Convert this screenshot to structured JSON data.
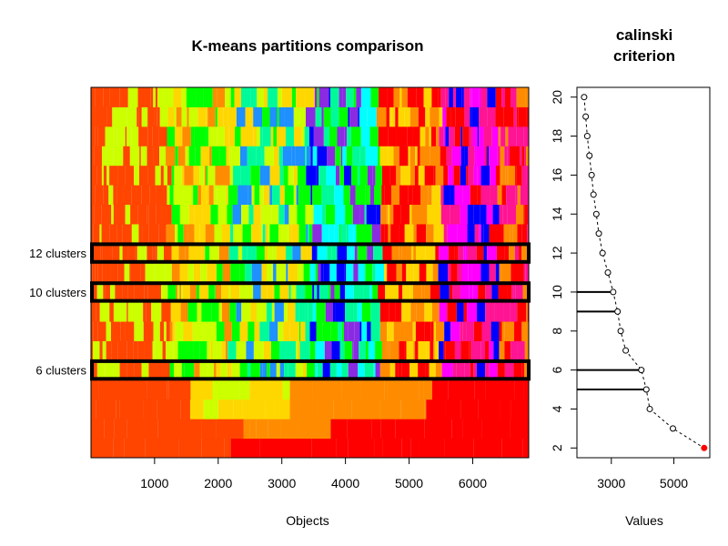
{
  "chart_data": [
    {
      "type": "heatmap",
      "title": "K-means partitions comparison",
      "xlabel": "Objects",
      "ylabel": "",
      "xlim": [
        1,
        6880
      ],
      "x_ticks": [
        "1000",
        "2000",
        "3000",
        "4000",
        "5000",
        "6000"
      ],
      "x_tick_values": [
        1000,
        2000,
        3000,
        4000,
        5000,
        6000
      ],
      "rows": "one row per number of clusters k, from k = 2 (bottom) to k = 20 (top); each row colored by cluster membership of the objects",
      "k_range": [
        2,
        20
      ],
      "highlighted_partitions": [
        {
          "label": "12 clusters",
          "k": 12
        },
        {
          "label": "10 clusters",
          "k": 10
        },
        {
          "label": "6 clusters",
          "k": 6
        }
      ],
      "palette": [
        "#ff0000",
        "#ff4500",
        "#ff8c00",
        "#ffd700",
        "#ccff00",
        "#00ff00",
        "#00fa9a",
        "#00ffff",
        "#1e90ff",
        "#0000ff",
        "#8a2be2",
        "#ff00ff",
        "#ff1493"
      ]
    },
    {
      "type": "scatter",
      "title_lines": [
        "calinski",
        "criterion"
      ],
      "xlabel": "Values",
      "ylabel": "",
      "xlim": [
        1900,
        6150
      ],
      "ylim": [
        1.5,
        20.5
      ],
      "x_ticks": [
        "3000",
        "5000"
      ],
      "x_tick_values": [
        3000,
        5000
      ],
      "y_ticks": [
        "2",
        "4",
        "6",
        "8",
        "10",
        "12",
        "14",
        "16",
        "18",
        "20"
      ],
      "y_tick_values": [
        2,
        4,
        6,
        8,
        10,
        12,
        14,
        16,
        18,
        20
      ],
      "points": [
        {
          "k": 20,
          "value": 2130
        },
        {
          "k": 19,
          "value": 2180
        },
        {
          "k": 18,
          "value": 2230
        },
        {
          "k": 17,
          "value": 2300
        },
        {
          "k": 16,
          "value": 2370
        },
        {
          "k": 15,
          "value": 2430
        },
        {
          "k": 14,
          "value": 2520
        },
        {
          "k": 13,
          "value": 2600
        },
        {
          "k": 12,
          "value": 2720
        },
        {
          "k": 11,
          "value": 2890
        },
        {
          "k": 10,
          "value": 3060
        },
        {
          "k": 9,
          "value": 3200
        },
        {
          "k": 8,
          "value": 3300
        },
        {
          "k": 7,
          "value": 3460
        },
        {
          "k": 6,
          "value": 3960
        },
        {
          "k": 5,
          "value": 4120
        },
        {
          "k": 4,
          "value": 4230
        },
        {
          "k": 3,
          "value": 4970
        },
        {
          "k": 2,
          "value": 5970
        }
      ],
      "max_point_k": 2,
      "max_point_color": "#ff0000",
      "highlight_segments_k": [
        10,
        9,
        6,
        5
      ],
      "line_style": "dashed"
    }
  ]
}
